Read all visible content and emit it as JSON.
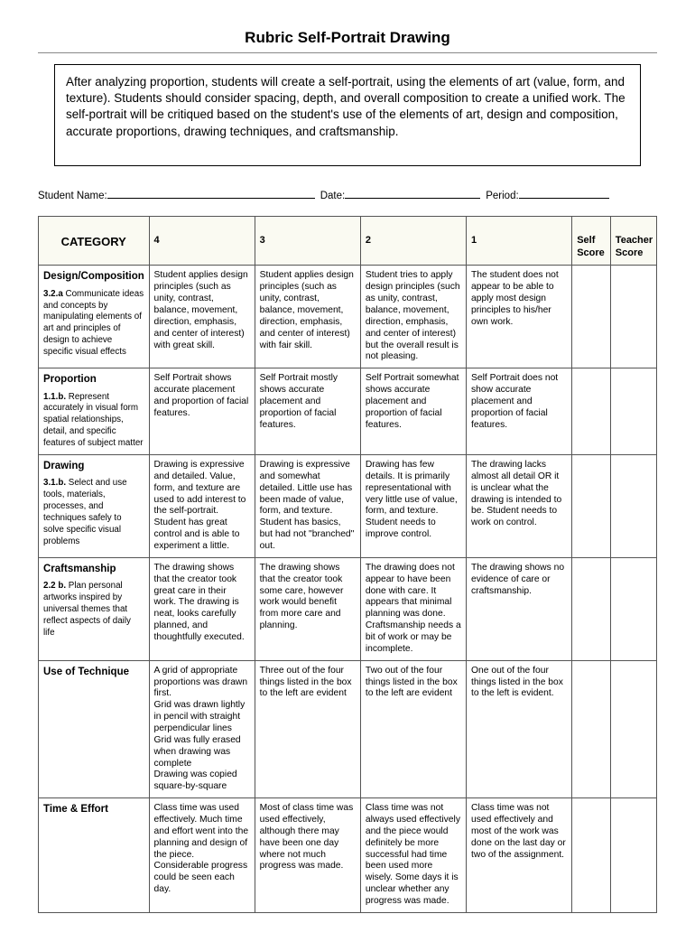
{
  "title": "Rubric Self-Portrait Drawing",
  "intro": "After analyzing proportion, students will create a self-portrait, using the elements of art (value, form, and texture).  Students should consider spacing, depth, and overall composition to create a unified work.  The self-portrait will be critiqued based on the student's use of the elements of art, design and composition, accurate proportions, drawing techniques, and craftsmanship.",
  "meta": {
    "name_label": "Student Name:",
    "date_label": "Date:",
    "period_label": "Period:"
  },
  "headers": {
    "category": "CATEGORY",
    "h4": "4",
    "h3": "3",
    "h2": "2",
    "h1": "1",
    "self": "Self Score",
    "teacher": "Teacher Score"
  },
  "rows": [
    {
      "cat_title": "Design/Composition",
      "cat_code": "3.2.a",
      "cat_desc": "  Communicate ideas and concepts by manipulating elements of art and principles of design to achieve specific visual effects",
      "c4": "Student applies design principles (such as unity, contrast, balance, movement, direction, emphasis, and center of interest) with great skill.",
      "c3": "Student applies design principles (such as unity, contrast, balance, movement, direction, emphasis, and center of interest) with fair skill.",
      "c2": "Student tries to apply design principles (such as unity, contrast, balance, movement, direction, emphasis, and center of interest) but the overall result is not pleasing.",
      "c1": "The student does not appear to be able to apply most design principles to his/her own work."
    },
    {
      "cat_title": "Proportion",
      "cat_code": "1.1.b.",
      "cat_desc": "  Represent accurately in visual form spatial relationships, detail, and specific features of subject matter",
      "c4": "Self Portrait shows accurate placement and proportion of facial features.",
      "c3": "Self Portrait mostly shows accurate placement and proportion of facial features.",
      "c2": "Self Portrait somewhat shows accurate placement and proportion of facial features.",
      "c1": "Self Portrait does not show accurate placement and proportion of facial features."
    },
    {
      "cat_title": "Drawing",
      "cat_code": "3.1.b.",
      "cat_desc": "  Select and use tools, materials, processes, and techniques safely to solve specific visual problems",
      "c4": "Drawing is expressive and detailed. Value, form, and texture are used to add interest to the self-portrait. Student has great control and is able to experiment a little.",
      "c3": "Drawing is expressive and somewhat detailed. Little use has been made of value, form, and texture. Student has basics, but had not \"branched\" out.",
      "c2": "Drawing has few details. It is primarily representational with very little use of value, form, and texture. Student needs to improve control.",
      "c1": "The drawing lacks almost all detail OR it is unclear what the drawing is intended to be. Student needs to work on control."
    },
    {
      "cat_title": "Craftsmanship",
      "cat_code": "2.2 b.",
      "cat_desc": "  Plan personal artworks inspired by universal themes that reflect aspects of daily life",
      "c4": "The drawing shows that the creator took great care in their work. The drawing is neat, looks carefully planned, and thoughtfully executed.",
      "c3": "The drawing shows that the creator took some care, however work would benefit from more care and planning.",
      "c2": "The drawing does not appear to have been done with care. It appears that minimal planning was done. Craftsmanship needs a bit of work or may be incomplete.",
      "c1": "The drawing shows no evidence of care or craftsmanship."
    },
    {
      "cat_title": "Use of Technique",
      "cat_code": "",
      "cat_desc": "",
      "c4": "A grid of appropriate proportions was drawn first.\nGrid was drawn lightly in pencil with straight perpendicular lines\nGrid was fully erased when drawing was complete\nDrawing was copied square-by-square",
      "c3": "Three out of the four things listed  in the box to the left are evident",
      "c2": "Two out of the four things listed in the box to the left are evident",
      "c1": "One out of the four things listed in the box to the left is evident."
    },
    {
      "cat_title": "Time & Effort",
      "cat_code": "",
      "cat_desc": "",
      "c4": "Class time was used effectively. Much time and effort went into the planning and design of the piece. Considerable progress could be seen each day.",
      "c3": "Most of class time was used effectively, although there may have been one day where not much progress was made.",
      "c2": "Class time was not always used effectively and the piece would definitely be more successful had time been used more wisely. Some days it is unclear whether any progress was made.",
      "c1": "Class time was not used effectively and most of the work was done on the last day or two of the assignment."
    }
  ]
}
